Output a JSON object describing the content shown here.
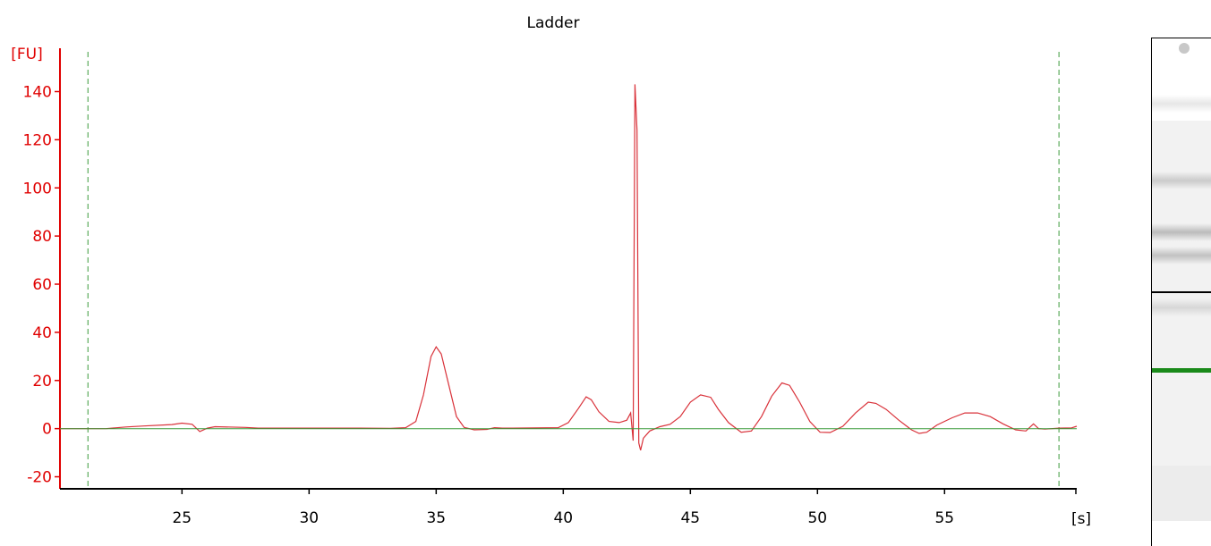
{
  "chart_data": {
    "type": "line",
    "title": "Ladder",
    "xlabel": "[s]",
    "ylabel": "[FU]",
    "xlim": [
      20.2,
      60.2
    ],
    "ylim": [
      -25,
      158
    ],
    "xticks": [
      25,
      30,
      35,
      40,
      45,
      50,
      55
    ],
    "yticks": [
      -20,
      0,
      20,
      40,
      60,
      80,
      100,
      120,
      140
    ],
    "grid": false,
    "marker_lines_x": [
      21.3,
      59.5
    ],
    "series": [
      {
        "color": "#d9323a",
        "x": [
          20.2,
          22.0,
          22.8,
          23.5,
          24.6,
          25.0,
          25.4,
          25.7,
          26.0,
          26.3,
          27.5,
          28.0,
          30.0,
          32.0,
          33.2,
          33.8,
          34.2,
          34.5,
          34.8,
          35.0,
          35.2,
          35.5,
          35.8,
          36.1,
          36.5,
          37.0,
          37.3,
          37.6,
          38.0,
          39.8,
          40.2,
          40.6,
          40.9,
          41.1,
          41.4,
          41.8,
          42.2,
          42.5,
          42.65,
          42.75,
          42.82,
          42.9,
          42.97,
          43.04,
          43.15,
          43.4,
          43.8,
          44.2,
          44.6,
          45.0,
          45.4,
          45.8,
          46.1,
          46.5,
          47.0,
          47.4,
          47.8,
          48.2,
          48.6,
          48.9,
          49.3,
          49.7,
          50.1,
          50.5,
          51.0,
          51.5,
          52.0,
          52.3,
          52.7,
          53.2,
          53.7,
          54.0,
          54.3,
          54.7,
          55.3,
          55.8,
          56.3,
          56.8,
          57.3,
          57.8,
          58.2,
          58.5,
          58.7,
          58.95,
          59.5,
          60.0,
          60.2
        ],
        "values": [
          0,
          0,
          0.7,
          1.1,
          1.7,
          2.3,
          1.8,
          -1.2,
          0.2,
          0.8,
          0.5,
          0.2,
          0.2,
          0.2,
          0.1,
          0.4,
          3.0,
          14.0,
          30.0,
          34.0,
          31.0,
          18.0,
          5.0,
          0.5,
          -0.5,
          -0.3,
          0.4,
          0.2,
          0.2,
          0.4,
          2.5,
          8.5,
          13.2,
          12.0,
          7.0,
          3.0,
          2.5,
          3.5,
          6.5,
          -5.0,
          143.0,
          124.0,
          -6.0,
          -9.0,
          -4.0,
          -1.0,
          0.8,
          1.8,
          5.0,
          11.0,
          14.0,
          13.0,
          8.0,
          2.5,
          -1.5,
          -1.0,
          5.0,
          13.5,
          19.0,
          18.0,
          11.0,
          3.0,
          -1.5,
          -1.6,
          1.0,
          6.5,
          11.0,
          10.5,
          8.0,
          3.5,
          -0.5,
          -2.0,
          -1.5,
          1.5,
          4.5,
          6.5,
          6.5,
          5.0,
          2.0,
          -0.5,
          -1.0,
          2.0,
          0.0,
          -0.2,
          0.2,
          0.3,
          1.0
        ]
      },
      {
        "color": "#3a9a3a",
        "x": [
          20.2,
          60.2
        ],
        "values": [
          0,
          0
        ]
      }
    ]
  },
  "gel": {
    "bands": [
      {
        "value": 137,
        "intensity": 0.18
      },
      {
        "value": 103,
        "intensity": 0.32
      },
      {
        "value": 80,
        "intensity": 0.45
      },
      {
        "value": 70,
        "intensity": 0.4
      },
      {
        "value": 47,
        "intensity": 0.22
      }
    ],
    "marker_band_color": "#1a8a1a"
  }
}
